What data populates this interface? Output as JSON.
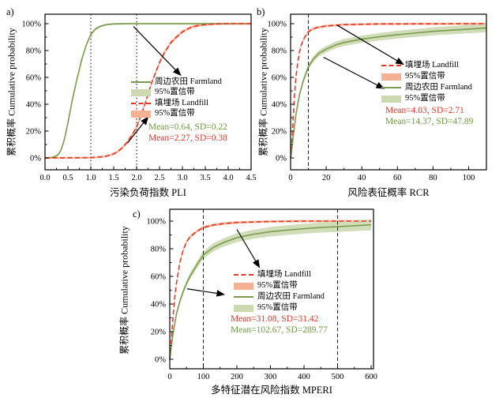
{
  "colors": {
    "farmland_line": "#7a9b4e",
    "farmland_band": "#ccd8b0",
    "landfill_line": "#e8352b",
    "landfill_band": "#f5b194",
    "farmland_text": "#6f9a3e",
    "landfill_text": "#e8352b",
    "axis": "#000000",
    "vline_dotted": "#4d4d4d",
    "vline_dashed": "#1a1a1a",
    "arrow": "#000000"
  },
  "chart_data": [
    {
      "panel_label": "a)",
      "type": "line",
      "xlabel": "污染负荷指数 PLI",
      "ylabel": "累积概率 Cumulative probability",
      "xlim": [
        0,
        4.5
      ],
      "ylim": [
        0,
        100
      ],
      "xticks": [
        0.0,
        0.5,
        1.0,
        1.5,
        2.0,
        2.5,
        3.0,
        3.5,
        4.0,
        4.5
      ],
      "xtick_labels": [
        "0.0",
        "0.5",
        "1.0",
        "1.5",
        "2.0",
        "2.5",
        "3.0",
        "3.5",
        "4.0",
        "4.5"
      ],
      "x_minor_step": 0.25,
      "ytick_labels": [
        "0%",
        "20%",
        "40%",
        "60%",
        "80%",
        "100%"
      ],
      "ytick_values": [
        0,
        20,
        40,
        60,
        80,
        100
      ],
      "y_minor_step": 10,
      "grid": false,
      "vlines": [
        {
          "x": 1.0
        },
        {
          "x": 2.0
        }
      ],
      "vline_style": "dotted",
      "series": [
        {
          "key": "farmland",
          "name": "周边农田 Farmland",
          "line": "solid",
          "mean": 0.64,
          "sd": 0.22,
          "x": [
            0,
            0.15,
            0.25,
            0.3,
            0.35,
            0.4,
            0.45,
            0.5,
            0.55,
            0.6,
            0.64,
            0.7,
            0.75,
            0.8,
            0.9,
            1.0,
            1.1,
            1.2,
            1.35,
            1.5,
            1.8,
            4.5
          ],
          "y": [
            0,
            0.3,
            1.5,
            3,
            6,
            11,
            18,
            26,
            35,
            44,
            50,
            59,
            66,
            73,
            84,
            92,
            96,
            98,
            99.4,
            99.8,
            100,
            100
          ],
          "band": [
            0.6,
            0.7,
            0.8,
            0.9,
            1.0,
            1.2,
            1.3,
            1.4,
            1.5,
            1.5,
            1.5,
            1.5,
            1.5,
            1.4,
            1.2,
            1.0,
            0.9,
            0.8,
            0.7,
            0.7,
            0.7,
            0.7
          ]
        },
        {
          "key": "landfill",
          "name": "填埋场 Landfill",
          "line": "dashed",
          "mean": 2.27,
          "sd": 0.38,
          "x": [
            0,
            1.0,
            1.3,
            1.5,
            1.6,
            1.7,
            1.8,
            1.9,
            2.0,
            2.1,
            2.2,
            2.27,
            2.35,
            2.5,
            2.6,
            2.75,
            2.9,
            3.0,
            3.2,
            3.4,
            3.7,
            4.0,
            4.5
          ],
          "y": [
            0,
            0.2,
            1,
            3,
            5,
            8,
            12,
            17,
            23,
            32,
            42,
            50,
            58,
            71,
            78,
            86,
            91,
            94,
            97.5,
            99,
            99.8,
            100,
            100
          ],
          "band": [
            0.7,
            0.7,
            0.8,
            0.9,
            1.0,
            1.1,
            1.2,
            1.3,
            1.4,
            1.5,
            1.5,
            1.5,
            1.5,
            1.5,
            1.4,
            1.3,
            1.2,
            1.1,
            1.0,
            0.9,
            0.8,
            0.8,
            0.8
          ]
        }
      ],
      "legend": {
        "position": "center-right",
        "entries": [
          {
            "label": "周边农田 Farmland",
            "swatch": "line",
            "series": "farmland"
          },
          {
            "label": "95%置信带",
            "swatch": "band",
            "series": "farmland"
          },
          {
            "label": "填埋场 Landfill",
            "swatch": "dash",
            "series": "landfill"
          },
          {
            "label": "95%置信带",
            "swatch": "band",
            "series": "landfill"
          }
        ]
      },
      "annotations": [
        {
          "text": "Mean=0.64, SD=0.22",
          "series": "farmland"
        },
        {
          "text": "Mean=2.27, SD=0.38",
          "series": "landfill"
        }
      ],
      "arrows": [
        {
          "x1": 1.93,
          "y1": 98,
          "x2": 2.95,
          "y2": 62
        },
        {
          "x1": 1.8,
          "y1": 11,
          "x2": 2.24,
          "y2": 30
        }
      ]
    },
    {
      "panel_label": "b)",
      "type": "line",
      "xlabel": "风险表征概率 RCR",
      "ylabel": "累积概率 Cumulative probability",
      "xlim": [
        0,
        110
      ],
      "ylim": [
        0,
        100
      ],
      "xticks": [
        0,
        20,
        40,
        60,
        80,
        100
      ],
      "xtick_labels": [
        "0",
        "20",
        "40",
        "60",
        "80",
        "100"
      ],
      "x_minor_step": 10,
      "ytick_labels": [
        "0%",
        "20%",
        "40%",
        "60%",
        "80%",
        "100%"
      ],
      "ytick_values": [
        0,
        20,
        40,
        60,
        80,
        100
      ],
      "y_minor_step": 10,
      "grid": false,
      "vlines": [
        {
          "x": 10
        }
      ],
      "vline_style": "dashed",
      "series": [
        {
          "key": "landfill",
          "name": "填埋场 Landfill",
          "line": "dashed",
          "mean": 4.03,
          "sd": 2.71,
          "x": [
            0,
            0.5,
            1,
            1.5,
            2,
            2.5,
            3,
            4,
            5,
            6,
            7,
            8,
            10,
            12,
            15,
            20,
            30,
            50,
            110
          ],
          "y": [
            0,
            7,
            18,
            30,
            42,
            52,
            60,
            71,
            79,
            84,
            87.5,
            90,
            94,
            95.8,
            97.2,
            98.3,
            99.3,
            99.8,
            100
          ],
          "band": [
            0.6,
            0.8,
            1.0,
            1.1,
            1.2,
            1.2,
            1.2,
            1.2,
            1.2,
            1.1,
            1.1,
            1.0,
            1.0,
            1.0,
            0.9,
            0.9,
            0.8,
            0.8,
            0.8
          ]
        },
        {
          "key": "farmland",
          "name": "周边农田 Farmland",
          "line": "solid",
          "mean": 14.37,
          "sd": 47.89,
          "x": [
            0,
            0.5,
            1,
            2,
            3,
            4,
            5,
            7,
            10,
            13,
            16,
            20,
            25,
            30,
            40,
            50,
            60,
            80,
            110
          ],
          "y": [
            0,
            4,
            10,
            22,
            32,
            40,
            47,
            57,
            68,
            74,
            78,
            81,
            84,
            86,
            88.5,
            90.3,
            91.8,
            94.3,
            96.8
          ],
          "band": [
            0.4,
            0.6,
            0.9,
            1.2,
            1.4,
            1.6,
            1.7,
            1.9,
            2.1,
            2.2,
            2.3,
            2.4,
            2.5,
            2.6,
            2.7,
            2.8,
            2.9,
            3.0,
            3.2
          ]
        }
      ],
      "legend": {
        "position": "center-right",
        "entries": [
          {
            "label": "填埋场 Landfill",
            "swatch": "dash",
            "series": "landfill"
          },
          {
            "label": "95%置信带",
            "swatch": "band",
            "series": "landfill"
          },
          {
            "label": "周边农田 Farmland",
            "swatch": "line",
            "series": "farmland"
          },
          {
            "label": "95%置信带",
            "swatch": "band",
            "series": "farmland"
          }
        ]
      },
      "annotations": [
        {
          "text": "Mean=4.03, SD=2.71",
          "series": "landfill"
        },
        {
          "text": "Mean=14.37, SD=47.89",
          "series": "farmland"
        }
      ],
      "arrows": [
        {
          "x1": 26,
          "y1": 99,
          "x2": 63,
          "y2": 70
        },
        {
          "x1": 18.5,
          "y1": 75,
          "x2": 52,
          "y2": 52
        }
      ]
    },
    {
      "panel_label": "c)",
      "type": "line",
      "xlabel": "多特征潜在风险指数 MPERI",
      "ylabel": "累积概率 Cumulative probability",
      "xlim": [
        0,
        600
      ],
      "ylim": [
        0,
        100
      ],
      "xticks": [
        0,
        100,
        200,
        300,
        400,
        500,
        600
      ],
      "xtick_labels": [
        "0",
        "100",
        "200",
        "300",
        "400",
        "500",
        "600"
      ],
      "x_minor_step": 50,
      "ytick_labels": [
        "0%",
        "20%",
        "40%",
        "60%",
        "80%",
        "100%"
      ],
      "ytick_values": [
        0,
        20,
        40,
        60,
        80,
        100
      ],
      "y_minor_step": 10,
      "grid": false,
      "vlines": [
        {
          "x": 100
        },
        {
          "x": 500
        }
      ],
      "vline_style": "dashed",
      "series": [
        {
          "key": "landfill",
          "name": "填埋场 Landfill",
          "line": "dashed",
          "mean": 31.08,
          "sd": 31.42,
          "x": [
            0,
            3,
            5,
            10,
            15,
            20,
            30,
            40,
            50,
            60,
            80,
            100,
            130,
            160,
            200,
            250,
            300,
            400,
            500,
            600
          ],
          "y": [
            0,
            8,
            15,
            32,
            45,
            55,
            70,
            79,
            85,
            88.5,
            92.5,
            95.4,
            97.2,
            98.2,
            99,
            99.4,
            99.7,
            100,
            100,
            100
          ],
          "band": [
            0.5,
            0.8,
            1.0,
            1.2,
            1.3,
            1.3,
            1.3,
            1.2,
            1.2,
            1.1,
            1.0,
            1.0,
            0.9,
            0.9,
            0.9,
            0.8,
            0.8,
            0.8,
            0.8,
            0.8
          ]
        },
        {
          "key": "farmland",
          "name": "周边农田 Farmland",
          "line": "solid",
          "mean": 102.67,
          "sd": 289.77,
          "x": [
            0,
            5,
            10,
            20,
            30,
            40,
            50,
            60,
            80,
            100,
            130,
            160,
            200,
            250,
            300,
            350,
            400,
            450,
            500,
            600
          ],
          "y": [
            0,
            10,
            19,
            33,
            42,
            49,
            55,
            60,
            68,
            75.5,
            81,
            84.5,
            88,
            90.5,
            92.3,
            93.5,
            94.5,
            95.4,
            96,
            97.3
          ],
          "band": [
            0.4,
            0.7,
            1.0,
            1.4,
            1.7,
            1.9,
            2.1,
            2.2,
            2.5,
            2.7,
            2.9,
            3.0,
            3.2,
            3.3,
            3.4,
            3.5,
            3.6,
            3.7,
            3.8,
            4.0
          ]
        }
      ],
      "legend": {
        "position": "center-right",
        "entries": [
          {
            "label": "填埋场 Landfill",
            "swatch": "dash",
            "series": "landfill"
          },
          {
            "label": "95%置信带",
            "swatch": "band",
            "series": "landfill"
          },
          {
            "label": "周边农田 Farmland",
            "swatch": "line",
            "series": "farmland"
          },
          {
            "label": "95%置信带",
            "swatch": "band",
            "series": "farmland"
          }
        ]
      },
      "annotations": [
        {
          "text": "Mean=31.08, SD=31.42",
          "series": "landfill"
        },
        {
          "text": "Mean=102.67, SD=289.77",
          "series": "farmland"
        }
      ],
      "arrows": [
        {
          "x1": 200,
          "y1": 94,
          "x2": 266,
          "y2": 67
        },
        {
          "x1": 52,
          "y1": 51,
          "x2": 160,
          "y2": 47
        }
      ]
    }
  ]
}
